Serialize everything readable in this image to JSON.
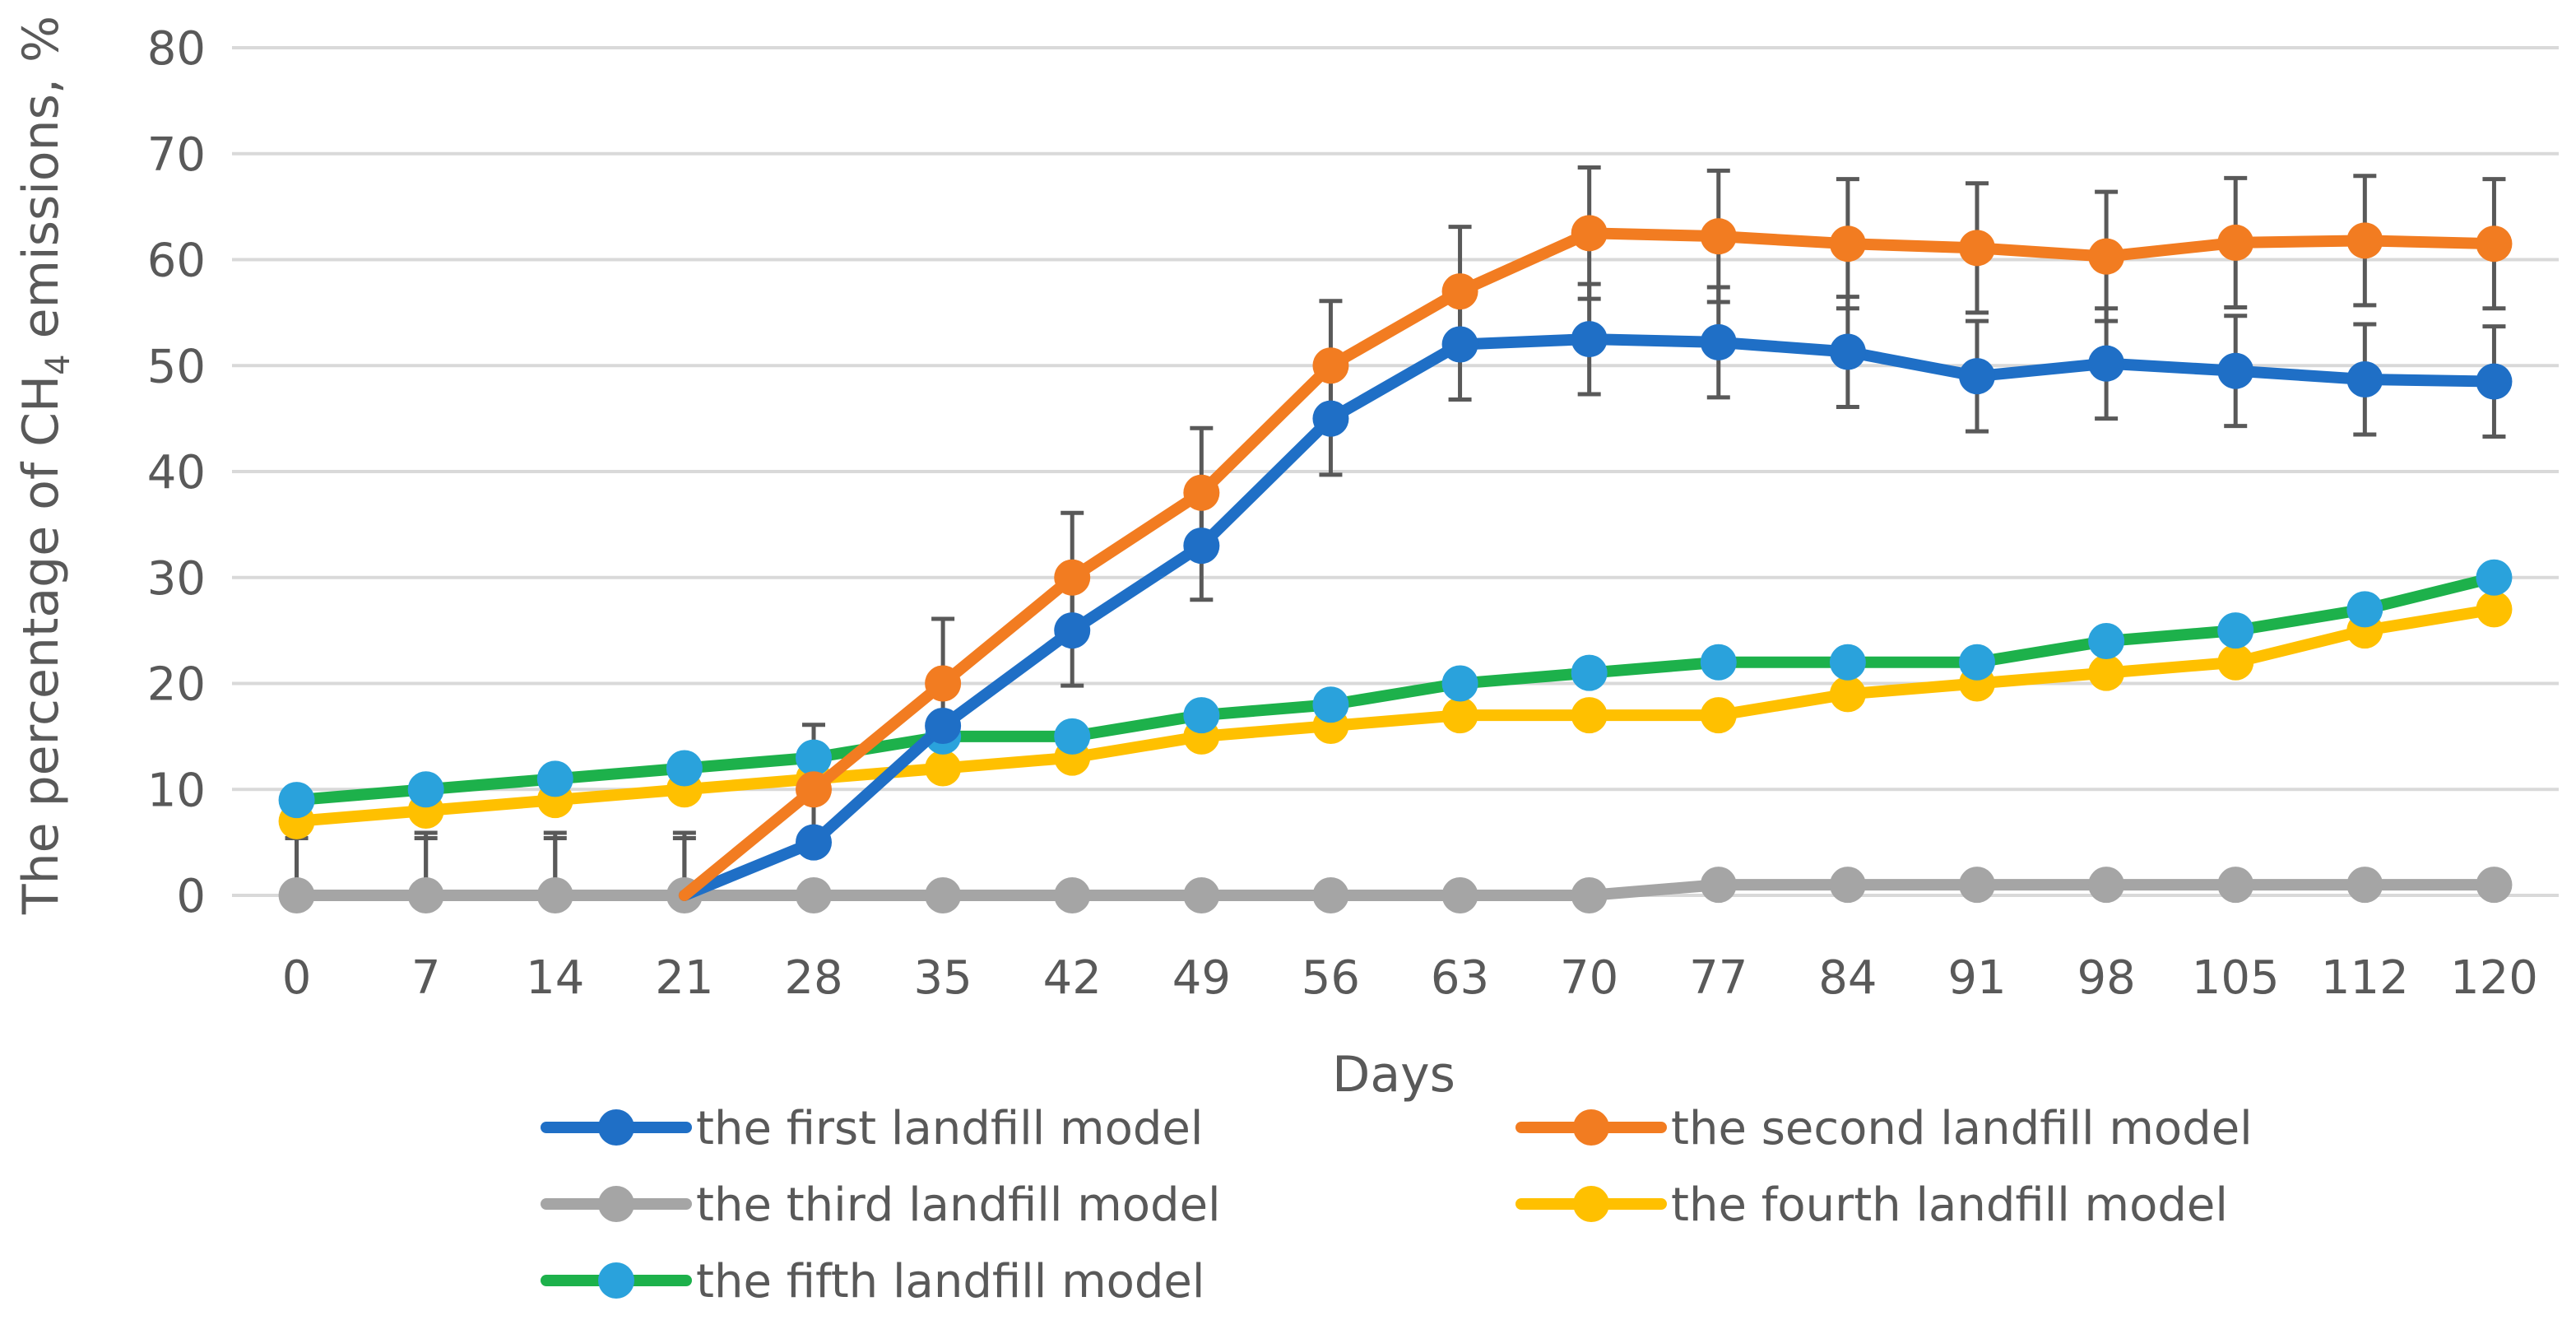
{
  "chart_data": {
    "type": "line",
    "title": "",
    "xlabel": "Days",
    "ylabel_prefix": "The percentage of CH",
    "ylabel_subscript": "4",
    "ylabel_suffix": " emissions, %",
    "categories": [
      "0",
      "7",
      "14",
      "21",
      "28",
      "35",
      "42",
      "49",
      "56",
      "63",
      "70",
      "77",
      "84",
      "91",
      "98",
      "105",
      "112",
      "120"
    ],
    "ylim": [
      0,
      80
    ],
    "yticks": [
      0,
      10,
      20,
      30,
      40,
      50,
      60,
      70,
      80
    ],
    "grid": true,
    "legend_position": "bottom",
    "series": [
      {
        "name": "the first landfill model",
        "color": "#1f6fc6",
        "marker": "#1f6fc6",
        "values": [
          null,
          null,
          null,
          0,
          5,
          16,
          25,
          33,
          45,
          52,
          52.5,
          52.2,
          51.3,
          49,
          50.2,
          49.5,
          48.7,
          48.5
        ],
        "errors": [
          null,
          null,
          null,
          null,
          null,
          null,
          5.2,
          5.1,
          5.3,
          5.2,
          5.2,
          5.2,
          5.2,
          5.2,
          5.2,
          5.2,
          5.2,
          5.2
        ],
        "zero_error": 5.4
      },
      {
        "name": "the second landfill model",
        "color": "#f27c21",
        "marker": "#f27c21",
        "values": [
          null,
          null,
          null,
          0,
          10,
          20,
          30,
          38,
          50,
          57,
          62.5,
          62.2,
          61.5,
          61.1,
          60.3,
          61.6,
          61.8,
          61.5
        ],
        "errors": [
          null,
          null,
          null,
          null,
          6.1,
          6.1,
          6.1,
          6.1,
          6.1,
          6.1,
          6.2,
          6.2,
          6.1,
          6.1,
          6.1,
          6.1,
          6.1,
          6.1
        ],
        "zero_error": 5.9
      },
      {
        "name": "the third landfill model",
        "color": "#a5a5a5",
        "marker": "#a5a5a5",
        "values": [
          0,
          0,
          0,
          0,
          0,
          0,
          0,
          0,
          0,
          0,
          0,
          1,
          1,
          1,
          1,
          1,
          1,
          1
        ],
        "errors": []
      },
      {
        "name": "the fourth landfill model",
        "color": "#ffc000",
        "marker": "#ffc000",
        "values": [
          7,
          8,
          9,
          10,
          11,
          12,
          13,
          15,
          16,
          17,
          17,
          17,
          19,
          20,
          21,
          22,
          25,
          27
        ],
        "errors": []
      },
      {
        "name": "the fifth landfill model",
        "color": "#1db14b",
        "marker": "#2aa2dc",
        "values": [
          9,
          10,
          11,
          12,
          13,
          15,
          15,
          17,
          18,
          20,
          21,
          22,
          22,
          22,
          24,
          25,
          27,
          30
        ],
        "errors": []
      }
    ]
  }
}
